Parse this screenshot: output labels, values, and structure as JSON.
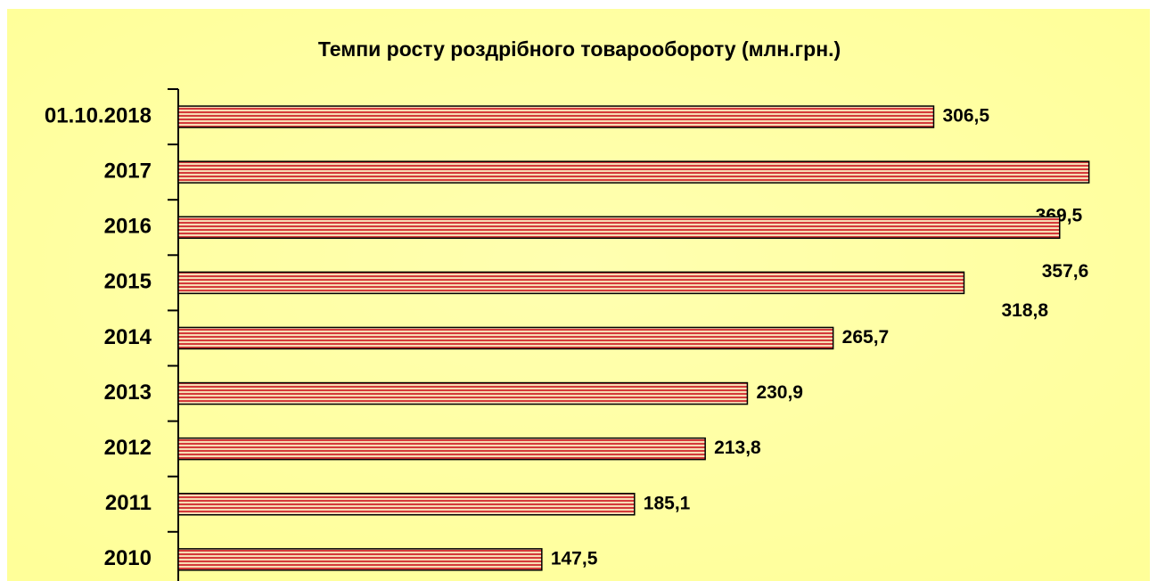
{
  "chart_data": {
    "type": "bar",
    "orientation": "horizontal",
    "title": "Темпи росту роздрібного товарообороту (млн.грн.)",
    "categories": [
      "01.10.2018",
      "2017",
      "2016",
      "2015",
      "2014",
      "2013",
      "2012",
      "2011",
      "2010"
    ],
    "values": [
      306.5,
      369.5,
      357.6,
      318.8,
      265.7,
      230.9,
      213.8,
      185.1,
      147.5
    ],
    "value_labels": [
      "306,5",
      "369,5",
      "357,6",
      "318,8",
      "265,7",
      "230,9",
      "213,8",
      "185,1",
      "147,5"
    ],
    "color": "#d43a3a"
  }
}
